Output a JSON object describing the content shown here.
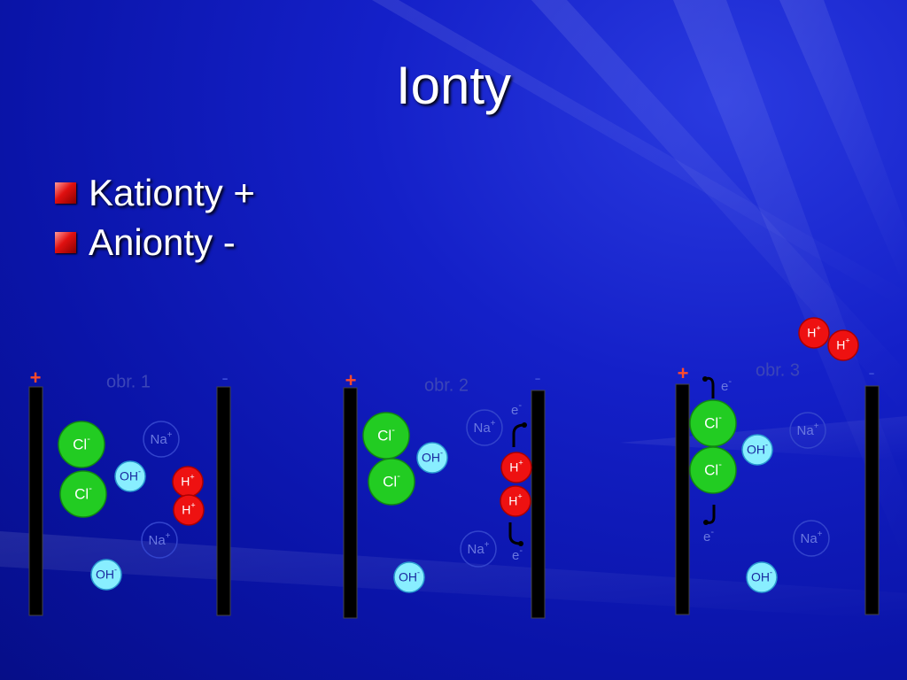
{
  "slide": {
    "title": "Ionty",
    "bullets": [
      "Kationty +",
      "Anionty -"
    ]
  },
  "colors": {
    "bullet": "#e01010",
    "electrode": "#000000",
    "chloride": "#22cc22",
    "hydroxide": "#88eeff",
    "hydrogen": "#ee1111",
    "sodium_outline": "#3344cc"
  },
  "panels": [
    {
      "caption": "obr. 1",
      "plus_sign": "+",
      "minus_sign": "-",
      "ions": [
        {
          "kind": "chloride",
          "label": "Cl",
          "charge": "-"
        },
        {
          "kind": "chloride",
          "label": "Cl",
          "charge": "-"
        },
        {
          "kind": "sodium",
          "label": "Na",
          "charge": "+"
        },
        {
          "kind": "sodium",
          "label": "Na",
          "charge": "+"
        },
        {
          "kind": "hydroxide",
          "label": "OH",
          "charge": "-"
        },
        {
          "kind": "hydroxide",
          "label": "OH",
          "charge": "-"
        },
        {
          "kind": "hydrogen",
          "label": "H",
          "charge": "+"
        },
        {
          "kind": "hydrogen",
          "label": "H",
          "charge": "+"
        }
      ],
      "electrons": []
    },
    {
      "caption": "obr. 2",
      "plus_sign": "+",
      "minus_sign": "-",
      "ions": [
        {
          "kind": "chloride",
          "label": "Cl",
          "charge": "-"
        },
        {
          "kind": "chloride",
          "label": "Cl",
          "charge": "-"
        },
        {
          "kind": "sodium",
          "label": "Na",
          "charge": "+"
        },
        {
          "kind": "sodium",
          "label": "Na",
          "charge": "+"
        },
        {
          "kind": "hydroxide",
          "label": "OH",
          "charge": "-"
        },
        {
          "kind": "hydroxide",
          "label": "OH",
          "charge": "-"
        },
        {
          "kind": "hydrogen",
          "label": "H",
          "charge": "+"
        },
        {
          "kind": "hydrogen",
          "label": "H",
          "charge": "+"
        }
      ],
      "electrons": [
        {
          "label": "e",
          "charge": "-"
        },
        {
          "label": "e",
          "charge": "-"
        }
      ]
    },
    {
      "caption": "obr. 3",
      "plus_sign": "+",
      "minus_sign": "-",
      "ions": [
        {
          "kind": "chloride",
          "label": "Cl",
          "charge": "-"
        },
        {
          "kind": "chloride",
          "label": "Cl",
          "charge": "-"
        },
        {
          "kind": "sodium",
          "label": "Na",
          "charge": "+"
        },
        {
          "kind": "sodium",
          "label": "Na",
          "charge": "+"
        },
        {
          "kind": "hydroxide",
          "label": "OH",
          "charge": "-"
        },
        {
          "kind": "hydroxide",
          "label": "OH",
          "charge": "-"
        },
        {
          "kind": "hydrogen",
          "label": "H",
          "charge": "+"
        },
        {
          "kind": "hydrogen",
          "label": "H",
          "charge": "+"
        }
      ],
      "electrons": [
        {
          "label": "e",
          "charge": "-"
        },
        {
          "label": "e",
          "charge": "-"
        }
      ]
    }
  ]
}
